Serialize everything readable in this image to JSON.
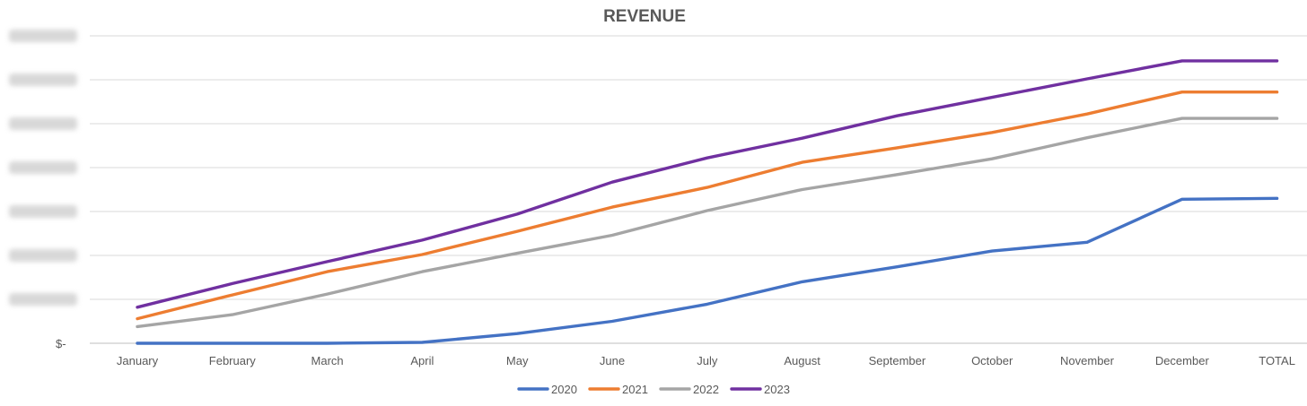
{
  "chart_data": {
    "type": "line",
    "title": "REVENUE",
    "xlabel": "",
    "ylabel": "",
    "categories": [
      "January",
      "February",
      "March",
      "April",
      "May",
      "June",
      "July",
      "August",
      "September",
      "October",
      "November",
      "December",
      "TOTAL"
    ],
    "y_axis": {
      "min": 0,
      "max": 7,
      "tick_step": 1,
      "visible_tick_label": "$-",
      "other_tick_labels_obscured": true
    },
    "grid": "horizontal",
    "legend_position": "bottom",
    "series": [
      {
        "name": "2020",
        "color": "#4472C4",
        "values": [
          0.0,
          0.0,
          0.0,
          0.02,
          0.22,
          0.5,
          0.89,
          1.4,
          1.74,
          2.1,
          2.3,
          3.28,
          3.3
        ]
      },
      {
        "name": "2021",
        "color": "#ED7D31",
        "values": [
          0.56,
          1.1,
          1.63,
          2.02,
          2.55,
          3.1,
          3.55,
          4.12,
          4.45,
          4.8,
          5.22,
          5.72,
          5.72
        ]
      },
      {
        "name": "2022",
        "color": "#A5A5A5",
        "values": [
          0.38,
          0.65,
          1.12,
          1.63,
          2.05,
          2.46,
          3.02,
          3.5,
          3.84,
          4.2,
          4.68,
          5.12,
          5.12
        ]
      },
      {
        "name": "2023",
        "color": "#7030A0",
        "values": [
          0.82,
          1.36,
          1.86,
          2.35,
          2.94,
          3.67,
          4.22,
          4.67,
          5.18,
          5.6,
          6.02,
          6.43,
          6.43
        ]
      }
    ]
  }
}
